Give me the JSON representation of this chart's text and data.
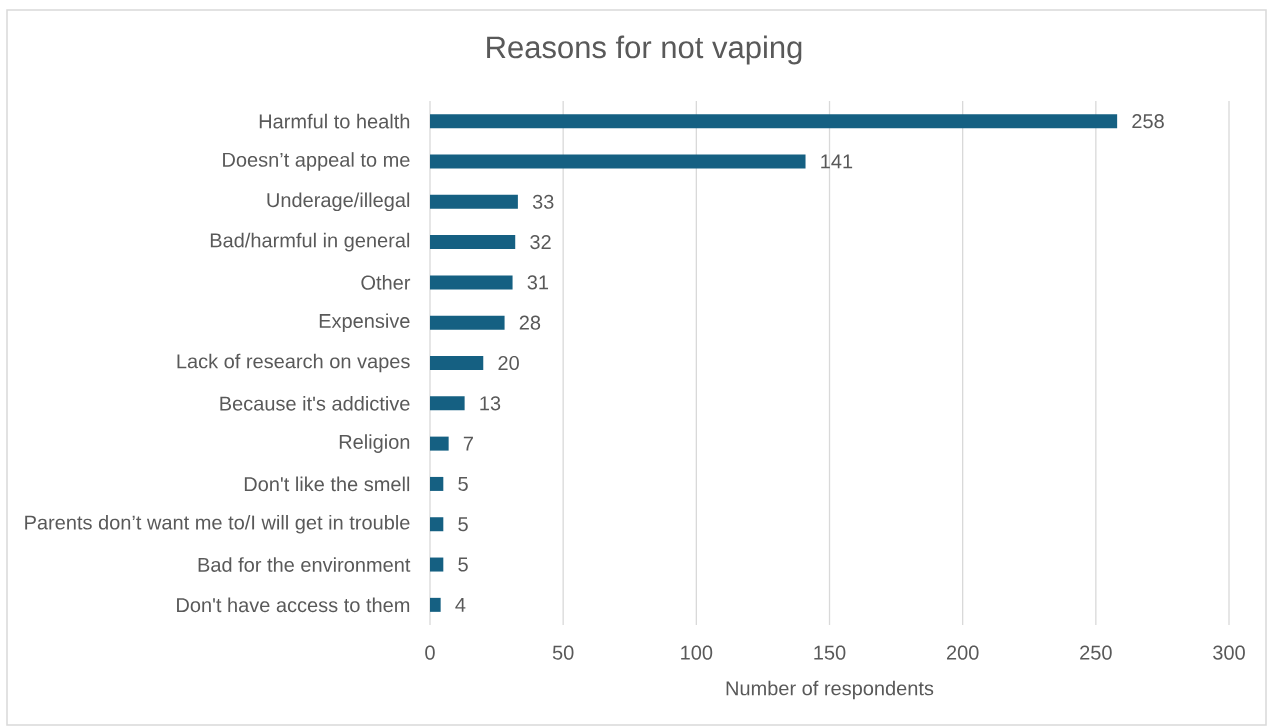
{
  "chart_data": {
    "type": "bar",
    "orientation": "horizontal",
    "title": "Reasons for not vaping",
    "xlabel": "Number of respondents",
    "categories": [
      "Harmful to health",
      "Doesn’t appeal to me",
      "Underage/illegal",
      "Bad/harmful in general",
      "Other",
      "Expensive",
      "Lack of research on vapes",
      "Because it's addictive",
      "Religion",
      "Don't like the smell",
      "Parents don’t want me to/I will get in trouble",
      "Bad for the environment",
      "Don't have access to them"
    ],
    "values": [
      258,
      141,
      33,
      32,
      31,
      28,
      20,
      13,
      7,
      5,
      5,
      5,
      4
    ],
    "color": "#156082",
    "xlim": [
      0,
      300
    ],
    "xticks": [
      0,
      50,
      100,
      150,
      200,
      250,
      300
    ],
    "grid": "x",
    "data_labels": true
  }
}
